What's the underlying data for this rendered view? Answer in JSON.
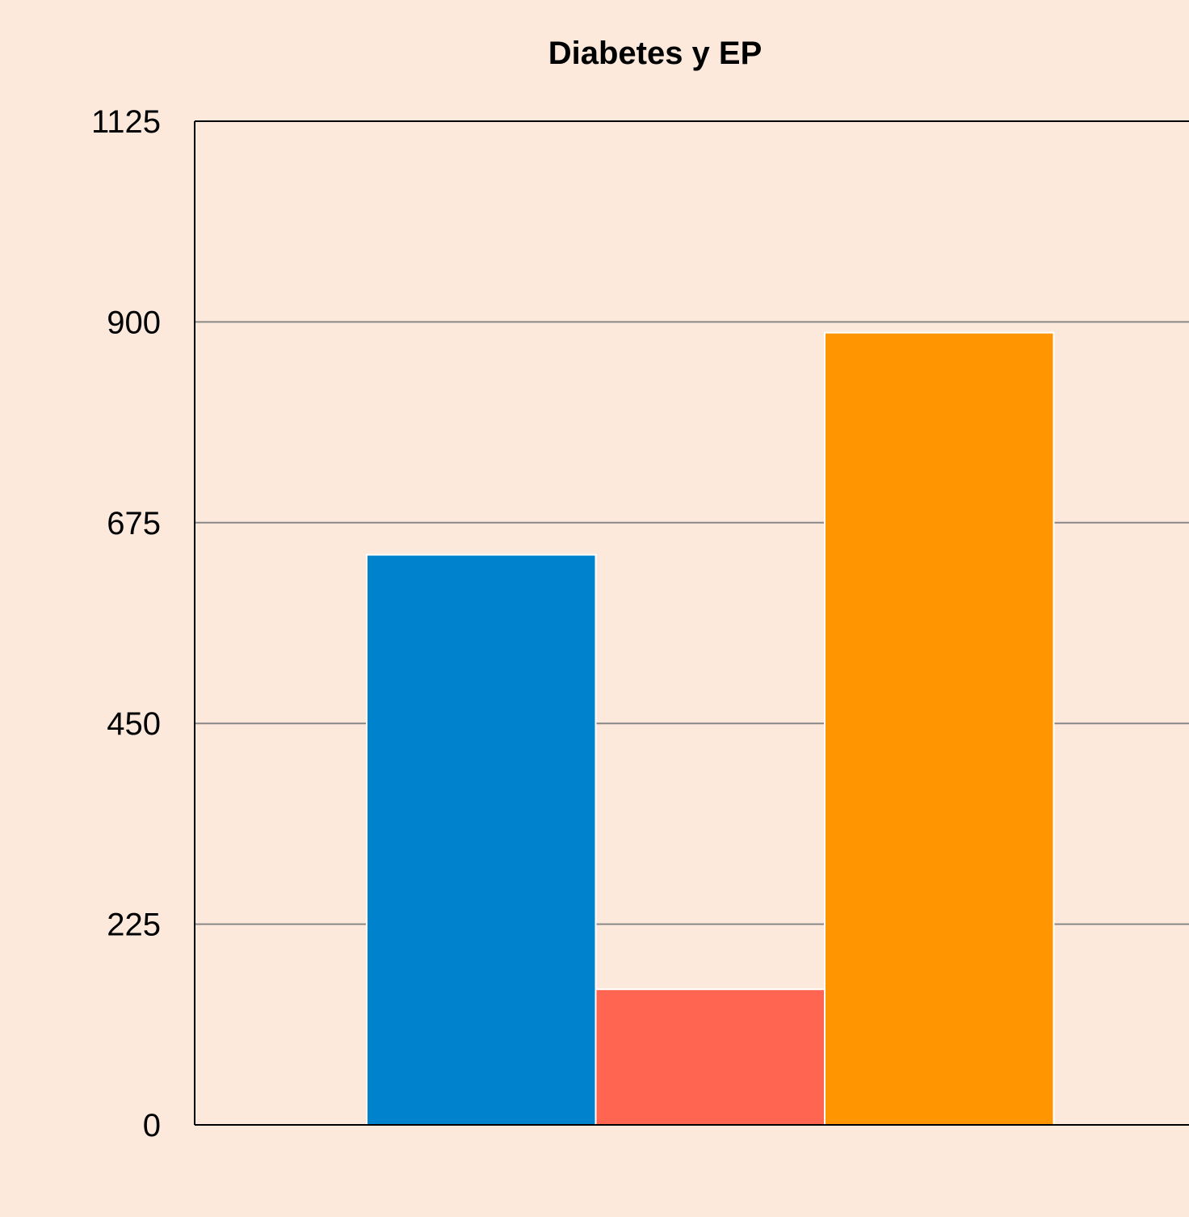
{
  "chart_data": {
    "type": "bar",
    "title": "Diabetes y EP",
    "xlabel": "",
    "ylabel": "",
    "ylim": [
      0,
      1125
    ],
    "yticks": [
      0,
      225,
      450,
      675,
      900,
      1125
    ],
    "grid": true,
    "legend": "none",
    "categories": [
      ""
    ],
    "series": [
      {
        "values": [
          639
        ],
        "color": "#0082cc"
      },
      {
        "values": [
          152
        ],
        "color": "#ff6550"
      },
      {
        "values": [
          888
        ],
        "color": "#ff9500"
      }
    ]
  },
  "colors": {
    "background": "#fde9dc",
    "gridline": "#888888",
    "axis": "#000000"
  }
}
